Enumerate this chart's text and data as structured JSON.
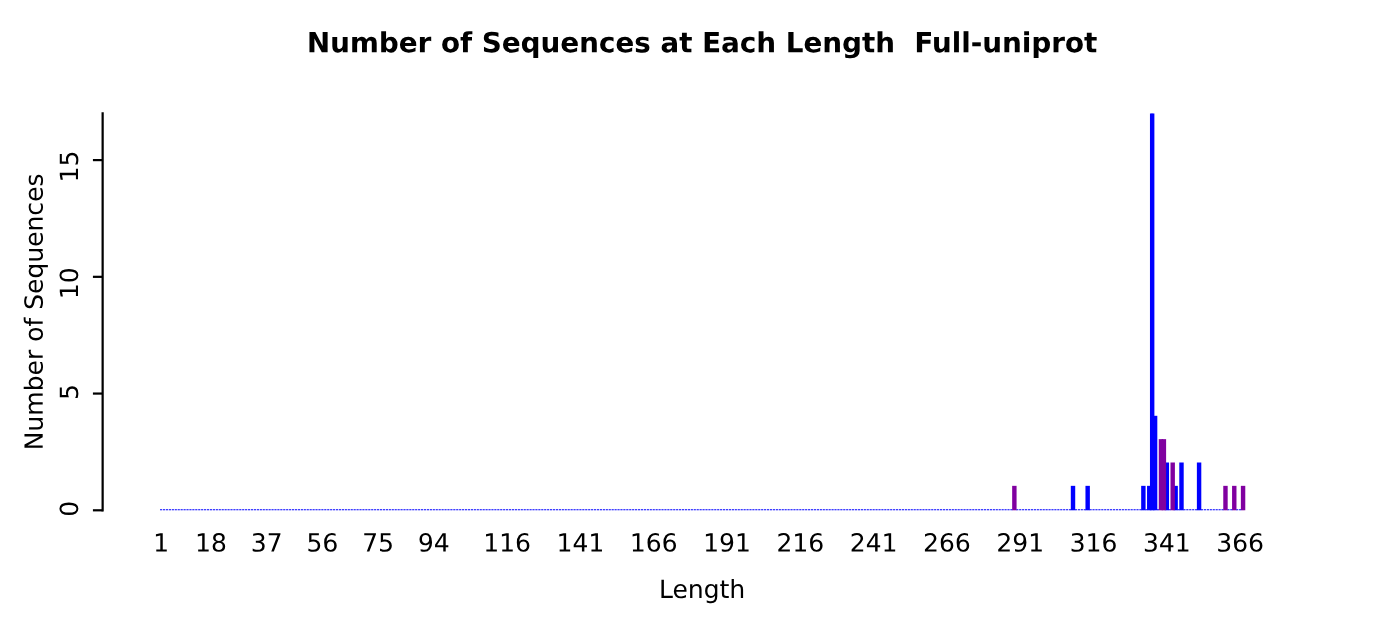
{
  "chart_data": {
    "type": "bar",
    "title": "Number of Sequences at Each Length  Full-uniprot",
    "xlabel": "Length",
    "ylabel": "Number of Sequences",
    "categories": [
      "1",
      null,
      null,
      null,
      null,
      null,
      null,
      null,
      null,
      null,
      null,
      null,
      null,
      null,
      null,
      null,
      null,
      "18",
      null,
      null,
      null,
      null,
      null,
      null,
      null,
      null,
      null,
      null,
      null,
      null,
      null,
      null,
      null,
      null,
      null,
      null,
      "37",
      null,
      null,
      null,
      null,
      null,
      null,
      null,
      null,
      null,
      null,
      null,
      null,
      null,
      null,
      null,
      null,
      null,
      null,
      "56",
      null,
      null,
      null,
      null,
      null,
      null,
      null,
      null,
      null,
      null,
      null,
      null,
      null,
      null,
      null,
      null,
      null,
      null,
      "75",
      null,
      null,
      null,
      null,
      null,
      null,
      null,
      null,
      null,
      null,
      null,
      null,
      null,
      null,
      null,
      null,
      null,
      null,
      "94",
      null,
      null,
      null,
      null,
      null,
      null,
      null,
      null,
      null,
      null,
      null,
      null,
      null,
      null,
      null,
      null,
      null,
      null,
      null,
      null,
      null,
      null,
      null,
      null,
      "116",
      null,
      null,
      null,
      null,
      null,
      null,
      null,
      null,
      null,
      null,
      null,
      null,
      null,
      null,
      null,
      null,
      null,
      null,
      null,
      null,
      null,
      null,
      null,
      null,
      "141",
      null,
      null,
      null,
      null,
      null,
      null,
      null,
      null,
      null,
      null,
      null,
      null,
      null,
      null,
      null,
      null,
      null,
      null,
      null,
      null,
      null,
      null,
      null,
      null,
      "166",
      null,
      null,
      null,
      null,
      null,
      null,
      null,
      null,
      null,
      null,
      null,
      null,
      null,
      null,
      null,
      null,
      null,
      null,
      null,
      null,
      null,
      null,
      null,
      null,
      "191",
      null,
      null,
      null,
      null,
      null,
      null,
      null,
      null,
      null,
      null,
      null,
      null,
      null,
      null,
      null,
      null,
      null,
      null,
      null,
      null,
      null,
      null,
      null,
      null,
      "216",
      null,
      null,
      null,
      null,
      null,
      null,
      null,
      null,
      null,
      null,
      null,
      null,
      null,
      null,
      null,
      null,
      null,
      null,
      null,
      null,
      null,
      null,
      null,
      null,
      "241",
      null,
      null,
      null,
      null,
      null,
      null,
      null,
      null,
      null,
      null,
      null,
      null,
      null,
      null,
      null,
      null,
      null,
      null,
      null,
      null,
      null,
      null,
      null,
      null,
      "266",
      null,
      null,
      null,
      null,
      null,
      null,
      null,
      null,
      null,
      null,
      null,
      null,
      null,
      null,
      null,
      null,
      null,
      null,
      null,
      null,
      null,
      null,
      null,
      null,
      "291",
      null,
      null,
      null,
      null,
      null,
      null,
      null,
      null,
      null,
      null,
      null,
      null,
      null,
      null,
      null,
      null,
      null,
      null,
      null,
      null,
      null,
      null,
      null,
      null,
      "316",
      null,
      null,
      null,
      null,
      null,
      null,
      null,
      null,
      null,
      null,
      null,
      null,
      null,
      null,
      null,
      null,
      null,
      null,
      null,
      null,
      null,
      null,
      null,
      null,
      "341",
      null,
      null,
      null,
      null,
      null,
      null,
      null,
      null,
      null,
      null,
      null,
      null,
      null,
      null,
      null,
      null,
      null,
      null,
      null,
      null,
      null,
      null,
      null,
      null,
      "366",
      null
    ],
    "series": [
      {
        "color": "#0000ff",
        "values": [
          0,
          0,
          0,
          0,
          0,
          0,
          0,
          0,
          0,
          0,
          0,
          0,
          0,
          0,
          0,
          0,
          0,
          0,
          0,
          0,
          0,
          0,
          0,
          0,
          0,
          0,
          0,
          0,
          0,
          0,
          0,
          0,
          0,
          0,
          0,
          0,
          0,
          0,
          0,
          0,
          0,
          0,
          0,
          0,
          0,
          0,
          0,
          0,
          0,
          0,
          0,
          0,
          0,
          0,
          0,
          0,
          0,
          0,
          0,
          0,
          0,
          0,
          0,
          0,
          0,
          0,
          0,
          0,
          0,
          0,
          0,
          0,
          0,
          0,
          0,
          0,
          0,
          0,
          0,
          0,
          0,
          0,
          0,
          0,
          0,
          0,
          0,
          0,
          0,
          0,
          0,
          0,
          0,
          0,
          0,
          0,
          0,
          0,
          0,
          0,
          0,
          0,
          0,
          0,
          0,
          0,
          0,
          0,
          0,
          0,
          0,
          0,
          0,
          0,
          0,
          0,
          0,
          0,
          0,
          0,
          0,
          0,
          0,
          0,
          0,
          0,
          0,
          0,
          0,
          0,
          0,
          0,
          0,
          0,
          0,
          0,
          0,
          0,
          0,
          0,
          0,
          0,
          0,
          0,
          0,
          0,
          0,
          0,
          0,
          0,
          0,
          0,
          0,
          0,
          0,
          0,
          0,
          0,
          0,
          0,
          0,
          0,
          0,
          0,
          0,
          0,
          0,
          0,
          0,
          0,
          0,
          0,
          0,
          0,
          0,
          0,
          0,
          0,
          0,
          0,
          0,
          0,
          0,
          0,
          0,
          0,
          0,
          0,
          0,
          0,
          0,
          0,
          0,
          0,
          0,
          0,
          0,
          0,
          0,
          0,
          0,
          0,
          0,
          0,
          0,
          0,
          0,
          0,
          0,
          0,
          0,
          0,
          0,
          0,
          0,
          0,
          0,
          0,
          0,
          0,
          0,
          0,
          0,
          0,
          0,
          0,
          0,
          0,
          0,
          0,
          0,
          0,
          0,
          0,
          0,
          0,
          0,
          0,
          0,
          0,
          0,
          0,
          0,
          0,
          0,
          0,
          0,
          0,
          0,
          0,
          0,
          0,
          0,
          0,
          0,
          0,
          0,
          0,
          0,
          0,
          0,
          0,
          0,
          0,
          0,
          0,
          0,
          0,
          0,
          0,
          0,
          0,
          0,
          0,
          0,
          0,
          0,
          0,
          0,
          0,
          0,
          0,
          0,
          0,
          0,
          0,
          0,
          0,
          0,
          0,
          0,
          null,
          0,
          0,
          0,
          0,
          0,
          0,
          0,
          0,
          0,
          0,
          0,
          0,
          0,
          0,
          0,
          0,
          0,
          0,
          0,
          1,
          0,
          0,
          0,
          0,
          1,
          0,
          0,
          0,
          0,
          0,
          0,
          0,
          0,
          0,
          0,
          0,
          0,
          0,
          0,
          0,
          0,
          0,
          0,
          1,
          0,
          1,
          17,
          4,
          0,
          null,
          null,
          2,
          0,
          null,
          1,
          0,
          2,
          0,
          0,
          0,
          0,
          0,
          2,
          0,
          0,
          0,
          0,
          0,
          0,
          0,
          0,
          null,
          0,
          0,
          null,
          0,
          0,
          null
        ]
      },
      {
        "color": "#8000a0",
        "values": [
          null,
          null,
          null,
          null,
          null,
          null,
          null,
          null,
          null,
          null,
          null,
          null,
          null,
          null,
          null,
          null,
          null,
          null,
          null,
          null,
          null,
          null,
          null,
          null,
          null,
          null,
          null,
          null,
          null,
          null,
          null,
          null,
          null,
          null,
          null,
          null,
          null,
          null,
          null,
          null,
          null,
          null,
          null,
          null,
          null,
          null,
          null,
          null,
          null,
          null,
          null,
          null,
          null,
          null,
          null,
          null,
          null,
          null,
          null,
          null,
          null,
          null,
          null,
          null,
          null,
          null,
          null,
          null,
          null,
          null,
          null,
          null,
          null,
          null,
          null,
          null,
          null,
          null,
          null,
          null,
          null,
          null,
          null,
          null,
          null,
          null,
          null,
          null,
          null,
          null,
          null,
          null,
          null,
          null,
          null,
          null,
          null,
          null,
          null,
          null,
          null,
          null,
          null,
          null,
          null,
          null,
          null,
          null,
          null,
          null,
          null,
          null,
          null,
          null,
          null,
          null,
          null,
          null,
          null,
          null,
          null,
          null,
          null,
          null,
          null,
          null,
          null,
          null,
          null,
          null,
          null,
          null,
          null,
          null,
          null,
          null,
          null,
          null,
          null,
          null,
          null,
          null,
          null,
          null,
          null,
          null,
          null,
          null,
          null,
          null,
          null,
          null,
          null,
          null,
          null,
          null,
          null,
          null,
          null,
          null,
          null,
          null,
          null,
          null,
          null,
          null,
          null,
          null,
          null,
          null,
          null,
          null,
          null,
          null,
          null,
          null,
          null,
          null,
          null,
          null,
          null,
          null,
          null,
          null,
          null,
          null,
          null,
          null,
          null,
          null,
          null,
          null,
          null,
          null,
          null,
          null,
          null,
          null,
          null,
          null,
          null,
          null,
          null,
          null,
          null,
          null,
          null,
          null,
          null,
          null,
          null,
          null,
          null,
          null,
          null,
          null,
          null,
          null,
          null,
          null,
          null,
          null,
          null,
          null,
          null,
          null,
          null,
          null,
          null,
          null,
          null,
          null,
          null,
          null,
          null,
          null,
          null,
          null,
          null,
          null,
          null,
          null,
          null,
          null,
          null,
          null,
          null,
          null,
          null,
          null,
          null,
          null,
          null,
          null,
          null,
          null,
          null,
          null,
          null,
          null,
          null,
          null,
          null,
          null,
          null,
          null,
          null,
          null,
          null,
          null,
          null,
          null,
          null,
          null,
          null,
          null,
          null,
          null,
          null,
          null,
          null,
          null,
          null,
          null,
          null,
          null,
          null,
          null,
          null,
          null,
          null,
          1,
          null,
          null,
          null,
          null,
          null,
          null,
          null,
          null,
          null,
          null,
          null,
          null,
          null,
          null,
          null,
          null,
          null,
          null,
          null,
          null,
          null,
          null,
          null,
          null,
          null,
          null,
          null,
          null,
          null,
          null,
          null,
          null,
          null,
          null,
          null,
          null,
          null,
          null,
          null,
          null,
          null,
          null,
          null,
          null,
          null,
          null,
          null,
          null,
          null,
          3,
          3,
          null,
          null,
          2,
          null,
          null,
          null,
          null,
          null,
          null,
          null,
          null,
          null,
          null,
          null,
          null,
          null,
          null,
          null,
          null,
          null,
          1,
          null,
          null,
          1,
          null,
          null,
          1
        ]
      }
    ],
    "ylim": [
      0,
      17
    ],
    "yticks": [
      0,
      5,
      10,
      15
    ],
    "grid": false,
    "legend": false
  }
}
